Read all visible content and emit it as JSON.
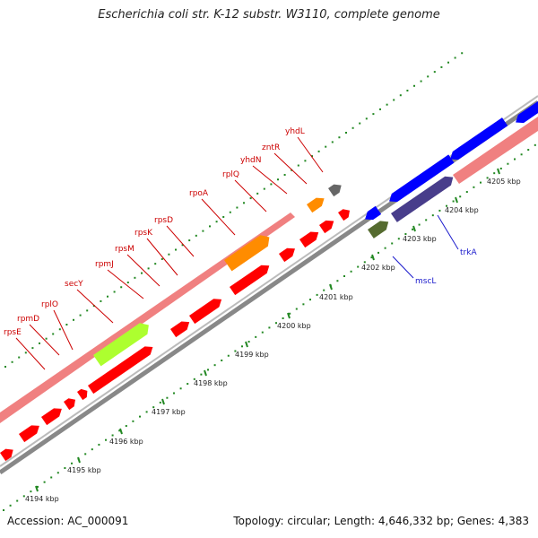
{
  "title": "Escherichia coli str. K-12 substr. W3110, complete genome",
  "accession_text": "Accession: AC_000091",
  "stats_text": "Topology: circular; Length: 4,646,332 bp; Genes: 4,383",
  "colors": {
    "forward_gene": "#ff0000",
    "ribosomal_band": "#f08080",
    "secY": "#adff2f",
    "rpoA": "#ff8c00",
    "yhdN": "#ff8c00",
    "yhdL": "#666666",
    "mscL": "#556b2f",
    "trkA": "#483d8b",
    "reverse_blue": "#0000ff",
    "tick": "#228822",
    "label_red": "#cc0000",
    "label_blue": "#1a1acc"
  },
  "scale_labels": [
    "4194 kbp",
    "4195 kbp",
    "4196 kbp",
    "4197 kbp",
    "4198 kbp",
    "4199 kbp",
    "4200 kbp",
    "4201 kbp",
    "4202 kbp",
    "4203 kbp",
    "4204 kbp",
    "4205 kbp"
  ],
  "gene_labels": [
    {
      "name": "rpsE",
      "color": "red"
    },
    {
      "name": "rpmD",
      "color": "red"
    },
    {
      "name": "rplO",
      "color": "red"
    },
    {
      "name": "secY",
      "color": "red"
    },
    {
      "name": "rpmJ",
      "color": "red"
    },
    {
      "name": "rpsM",
      "color": "red"
    },
    {
      "name": "rpsK",
      "color": "red"
    },
    {
      "name": "rpsD",
      "color": "red"
    },
    {
      "name": "rpoA",
      "color": "red"
    },
    {
      "name": "rplQ",
      "color": "red"
    },
    {
      "name": "yhdN",
      "color": "red"
    },
    {
      "name": "zntR",
      "color": "red"
    },
    {
      "name": "yhdL",
      "color": "red"
    },
    {
      "name": "mscL",
      "color": "blue"
    },
    {
      "name": "trkA",
      "color": "blue"
    }
  ]
}
